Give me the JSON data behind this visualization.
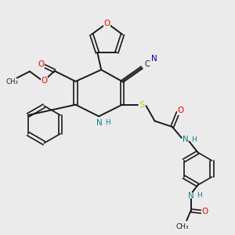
{
  "bg_color": "#ebebeb",
  "bond_color": "#1a1a1a",
  "colors": {
    "O": "#ff0000",
    "N": "#0000cc",
    "NH": "#008888",
    "S": "#cccc00",
    "C": "#1a1a1a"
  },
  "figsize": [
    3.0,
    3.0
  ],
  "dpi": 100,
  "xlim": [
    0,
    10
  ],
  "ylim": [
    0,
    10
  ]
}
